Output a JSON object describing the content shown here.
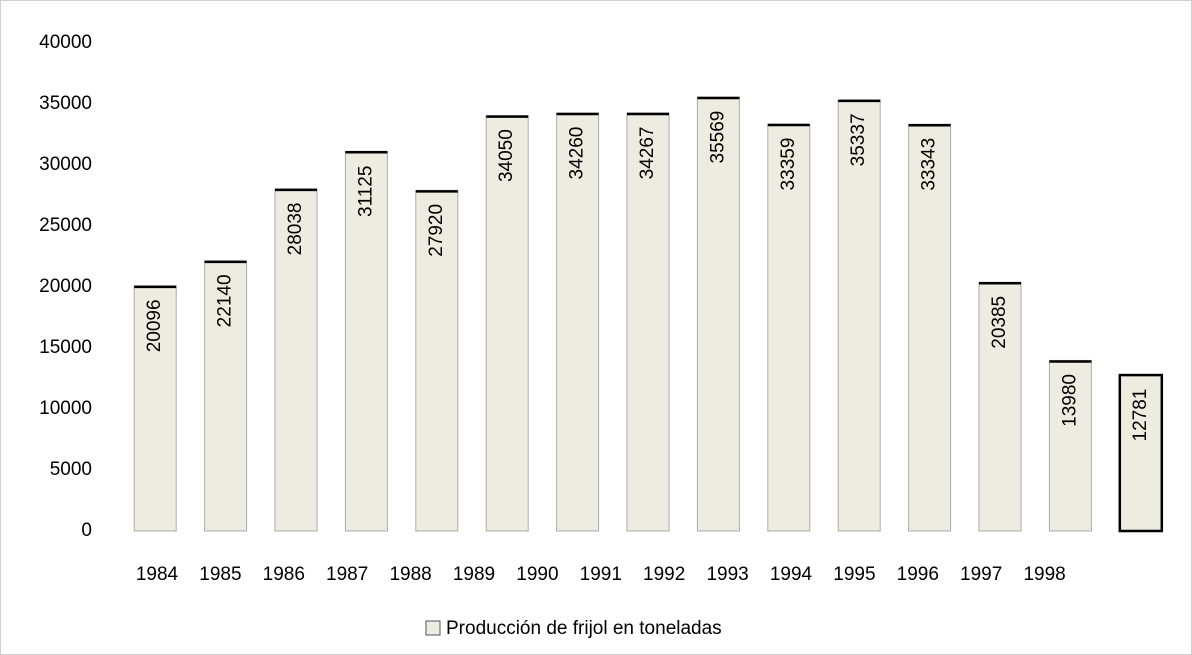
{
  "chart_data": {
    "type": "bar",
    "categories": [
      "1984",
      "1985",
      "1986",
      "1987",
      "1988",
      "1989",
      "1990",
      "1991",
      "1992",
      "1993",
      "1994",
      "1995",
      "1996",
      "1997",
      "1998"
    ],
    "series": [
      {
        "name": "Producción de frijol en toneladas",
        "color": "#eeece1",
        "values": [
          20096,
          22140,
          28038,
          31125,
          27920,
          34050,
          34260,
          34267,
          35569,
          33359,
          35337,
          33343,
          20385,
          13980,
          12781
        ]
      }
    ],
    "ylim": [
      0,
      40000
    ],
    "yticks": [
      0,
      5000,
      10000,
      15000,
      20000,
      25000,
      30000,
      35000,
      40000
    ],
    "legend": "bottom"
  }
}
